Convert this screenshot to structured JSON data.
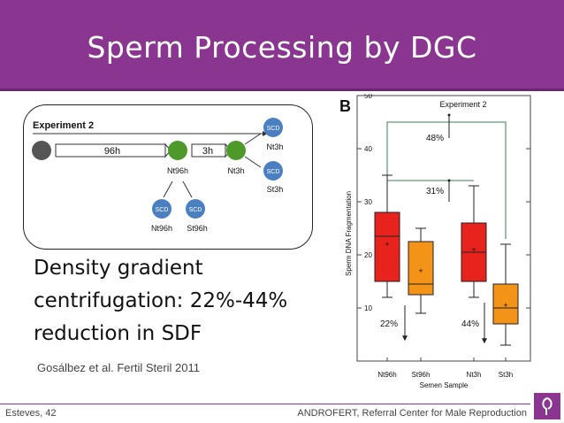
{
  "slide": {
    "title": "Sperm Processing by DGC",
    "body_text": "Density gradient centrifugation: 22%-44% reduction in SDF",
    "citation": "Gosálbez et al. Fertil Steril 2011",
    "footer_left": "Esteves, 42",
    "footer_right": "ANDROFERT, Referral Center for Male Reproduction"
  },
  "diagram": {
    "title": "Experiment 2",
    "arrow_96h": "96h",
    "arrow_3h": "3h",
    "node_label_nt96h": "Nt96h",
    "node_label_nt3h": "Nt3h",
    "scd_label": "SCD",
    "out_nt3h": "Nt3h",
    "out_st3h": "St3h",
    "out_nt96h": "Nt96h",
    "out_st96h": "St96h",
    "colors": {
      "green": "#4d9a2a",
      "gray": "#555555",
      "scd": "#4a7fc1"
    }
  },
  "chart_data": {
    "type": "box",
    "panel_label": "B",
    "title": "Experiment 2",
    "xlabel": "Semen Sample",
    "ylabel": "Sperm DNA Fragmentation",
    "ylim": [
      0,
      50
    ],
    "yticks": [
      10,
      20,
      30,
      40,
      50
    ],
    "categories": [
      "Nt96h",
      "St96h",
      "Nt3h",
      "St3h"
    ],
    "boxes": [
      {
        "category": "Nt96h",
        "whisker_low": 12,
        "q1": 15,
        "median": 23.5,
        "q3": 28,
        "whisker_high": 35,
        "mean": 22,
        "color": "#e8231e"
      },
      {
        "category": "St96h",
        "whisker_low": 9,
        "q1": 12.5,
        "median": 14.5,
        "q3": 22.5,
        "whisker_high": 25,
        "mean": 17,
        "color": "#f39419"
      },
      {
        "category": "Nt3h",
        "whisker_low": 12,
        "q1": 15,
        "median": 20.5,
        "q3": 26,
        "whisker_high": 33,
        "mean": 21,
        "color": "#e8231e"
      },
      {
        "category": "St3h",
        "whisker_low": 3,
        "q1": 7,
        "median": 10,
        "q3": 14.5,
        "whisker_high": 22,
        "mean": 10.5,
        "color": "#f39419"
      }
    ],
    "annotations": [
      {
        "text": "48%",
        "between": [
          "Nt96h",
          "St3h"
        ],
        "level": 45
      },
      {
        "text": "31%",
        "between": [
          "Nt96h",
          "Nt3h"
        ],
        "level": 34
      },
      {
        "text": "22%",
        "near": "St96h"
      },
      {
        "text": "44%",
        "near": "Nt3h"
      }
    ],
    "bracket_color": "#2f8a4c",
    "grid": false
  }
}
